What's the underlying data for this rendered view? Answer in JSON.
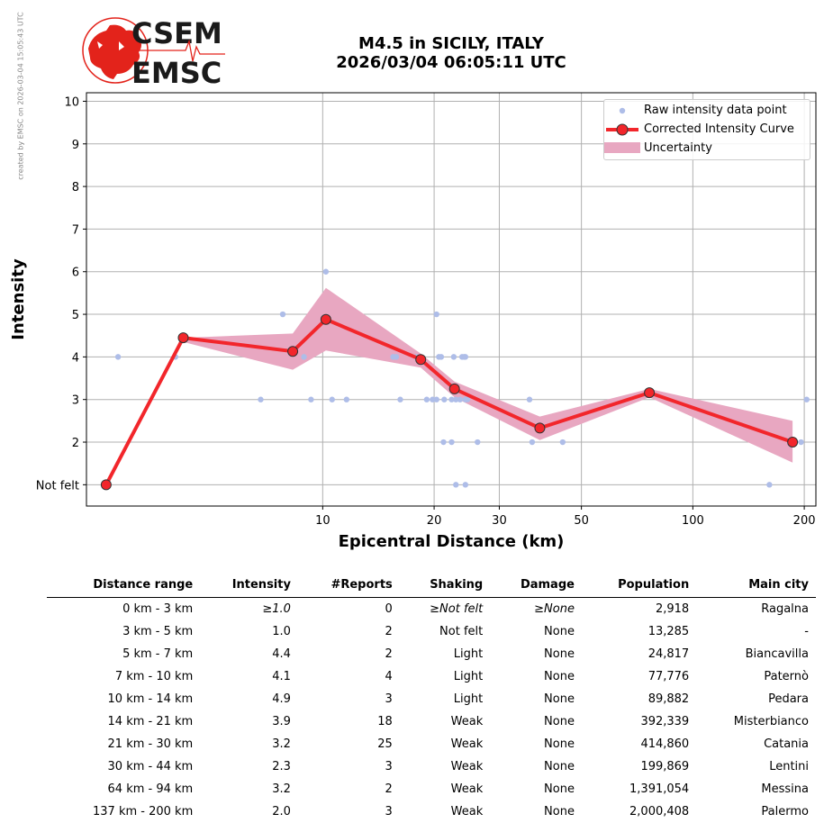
{
  "side_note": "created by EMSC on 2026-03-04 15:05:43 UTC",
  "logo": {
    "line1": "CSEM",
    "line2": "EMSC",
    "color": "#e3231b",
    "text_color": "#1a1a1a"
  },
  "title": {
    "line1": "M4.5 in SICILY, ITALY",
    "line2": "2026/03/04 06:05:11 UTC"
  },
  "chart_data": {
    "type": "line",
    "xlabel": "Epicentral Distance (km)",
    "ylabel": "Intensity",
    "x_scale": "log",
    "x_ticks": [
      10,
      20,
      30,
      50,
      100,
      200
    ],
    "xlim": [
      2.3,
      215
    ],
    "ylim": [
      0.5,
      10.2
    ],
    "y_ticks": [
      1,
      2,
      3,
      4,
      5,
      6,
      7,
      8,
      9,
      10
    ],
    "y_tick_labels": [
      "Not felt",
      "2",
      "3",
      "4",
      "5",
      "6",
      "7",
      "8",
      "9",
      "10"
    ],
    "grid": true,
    "legend_position": "top-right",
    "legend": [
      "Raw intensity data point",
      "Corrected Intensity Curve",
      "Uncertainty"
    ],
    "colors": {
      "raw": "#aebde8",
      "curve": "#f2262b",
      "uncertainty": "#e8a7c1",
      "marker_edge": "#333333"
    },
    "raw_points": [
      [
        2.8,
        4
      ],
      [
        4.0,
        4
      ],
      [
        6.8,
        3
      ],
      [
        7.8,
        5
      ],
      [
        8.9,
        4
      ],
      [
        9.3,
        3
      ],
      [
        10.6,
        3
      ],
      [
        10.2,
        6
      ],
      [
        11.6,
        3
      ],
      [
        15.5,
        4
      ],
      [
        15.8,
        4
      ],
      [
        16.2,
        3
      ],
      [
        17.9,
        4
      ],
      [
        19.1,
        3
      ],
      [
        19.8,
        3
      ],
      [
        20.3,
        3
      ],
      [
        20.3,
        5
      ],
      [
        20.6,
        4
      ],
      [
        20.9,
        4
      ],
      [
        21.2,
        2
      ],
      [
        21.3,
        3
      ],
      [
        22.3,
        2
      ],
      [
        22.3,
        3
      ],
      [
        22.6,
        4
      ],
      [
        22.9,
        3
      ],
      [
        22.9,
        1
      ],
      [
        23.5,
        3
      ],
      [
        23.8,
        4
      ],
      [
        24.1,
        4
      ],
      [
        24.3,
        4
      ],
      [
        24.3,
        3
      ],
      [
        24.3,
        1
      ],
      [
        24.6,
        3
      ],
      [
        26.2,
        2
      ],
      [
        36.2,
        3
      ],
      [
        36.8,
        2
      ],
      [
        44.5,
        2
      ],
      [
        161,
        1
      ],
      [
        196,
        2
      ],
      [
        203,
        3
      ]
    ],
    "curve": {
      "x": [
        2.6,
        4.2,
        8.3,
        10.2,
        18.4,
        22.7,
        38.6,
        76.3,
        186
      ],
      "y": [
        1.0,
        4.45,
        4.13,
        4.88,
        3.94,
        3.25,
        2.33,
        3.16,
        2.0
      ]
    },
    "band": {
      "upper": [
        4.45,
        4.55,
        5.62,
        4.08,
        3.42,
        2.6,
        3.25,
        2.5
      ],
      "lower": [
        4.35,
        3.7,
        4.15,
        3.75,
        3.05,
        2.05,
        3.05,
        1.52
      ]
    }
  },
  "table": {
    "headers": [
      "Distance range",
      "Intensity",
      "#Reports",
      "Shaking",
      "Damage",
      "Population",
      "Main city"
    ],
    "rows": [
      [
        "0 km -    3 km",
        "≥1.0",
        "0",
        "≥Not felt",
        "≥None",
        "2,918",
        "Ragalna"
      ],
      [
        "3 km -    5 km",
        "1.0",
        "2",
        "Not felt",
        "None",
        "13,285",
        "-"
      ],
      [
        "5 km -    7 km",
        "4.4",
        "2",
        "Light",
        "None",
        "24,817",
        "Biancavilla"
      ],
      [
        "7 km -   10 km",
        "4.1",
        "4",
        "Light",
        "None",
        "77,776",
        "Paternò"
      ],
      [
        "10 km -   14 km",
        "4.9",
        "3",
        "Light",
        "None",
        "89,882",
        "Pedara"
      ],
      [
        "14 km -   21 km",
        "3.9",
        "18",
        "Weak",
        "None",
        "392,339",
        "Misterbianco"
      ],
      [
        "21 km -   30 km",
        "3.2",
        "25",
        "Weak",
        "None",
        "414,860",
        "Catania"
      ],
      [
        "30 km -   44 km",
        "2.3",
        "3",
        "Weak",
        "None",
        "199,869",
        "Lentini"
      ],
      [
        "64 km -   94 km",
        "3.2",
        "2",
        "Weak",
        "None",
        "1,391,054",
        "Messina"
      ],
      [
        "137 km -  200 km",
        "2.0",
        "3",
        "Weak",
        "None",
        "2,000,408",
        "Palermo"
      ]
    ],
    "italic_first_row": true
  }
}
